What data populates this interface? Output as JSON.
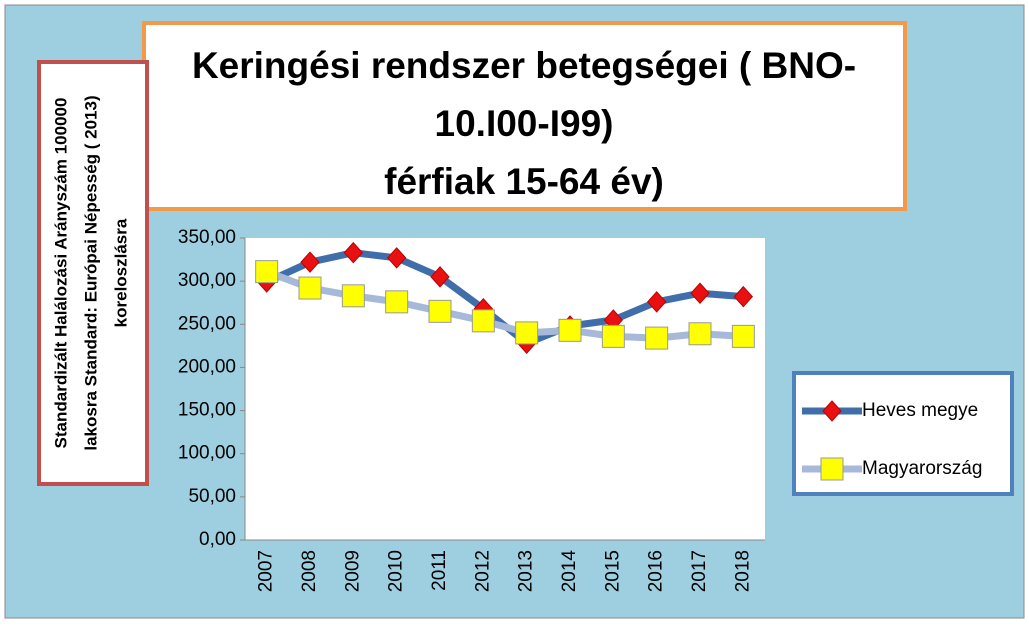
{
  "chart_data": {
    "type": "line",
    "title": [
      "Keringési rendszer betegségei  ( BNO-",
      "10.I00-I99)",
      "férfiak 15-64 év)"
    ],
    "y_label": [
      "Standardizált Halálozási Arányszám 100000",
      "lakosra Standard: Európai Népesség ( 2013)",
      "koreloszlásra"
    ],
    "categories": [
      "2007",
      "2008",
      "2009",
      "2010",
      "2011",
      "2012",
      "2013",
      "2014",
      "2015",
      "2016",
      "2017",
      "2018"
    ],
    "series": [
      {
        "name": "Heves megye",
        "color": "#3f6eaa",
        "marker_color": "#e81010",
        "marker": "diamond",
        "values": [
          299,
          322,
          333,
          327,
          305,
          268,
          228,
          248,
          255,
          276,
          286,
          282
        ]
      },
      {
        "name": "Magyarország",
        "color": "#a7b9d9",
        "marker_color": "#ffff00",
        "marker": "square",
        "values": [
          311,
          292,
          283,
          276,
          265,
          254,
          240,
          243,
          236,
          234,
          239,
          236
        ]
      }
    ],
    "ylim": [
      0,
      350
    ],
    "yticks": [
      {
        "value": 0,
        "label": "0,00"
      },
      {
        "value": 50,
        "label": "50,00"
      },
      {
        "value": 100,
        "label": "100,00"
      },
      {
        "value": 150,
        "label": "150,00"
      },
      {
        "value": 200,
        "label": "200,00"
      },
      {
        "value": 250,
        "label": "250,00"
      },
      {
        "value": 300,
        "label": "300,00"
      },
      {
        "value": 350,
        "label": "350,00"
      }
    ],
    "grid": false,
    "legend": "right"
  }
}
